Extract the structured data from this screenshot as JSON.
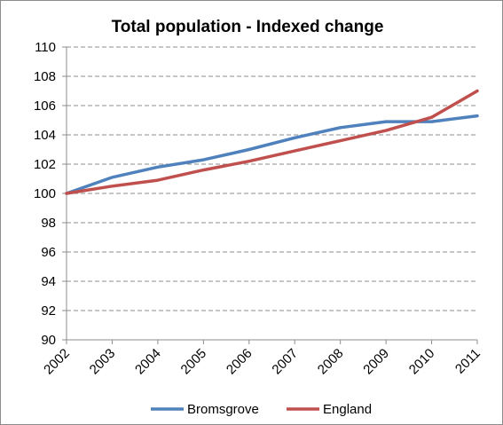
{
  "chart_data": {
    "type": "line",
    "title": "Total population - Indexed change",
    "xlabel": "",
    "ylabel": "",
    "x": [
      "2002",
      "2003",
      "2004",
      "2005",
      "2006",
      "2007",
      "2008",
      "2009",
      "2010",
      "2011"
    ],
    "yticks": [
      90,
      92,
      94,
      96,
      98,
      100,
      102,
      104,
      106,
      108,
      110
    ],
    "ylim": [
      90,
      110
    ],
    "grid": true,
    "legend_position": "bottom",
    "series": [
      {
        "name": "Bromsgrove",
        "color": "#4f81bd",
        "values": [
          100.0,
          101.1,
          101.8,
          102.3,
          103.0,
          103.8,
          104.5,
          104.9,
          104.9,
          105.3
        ]
      },
      {
        "name": "England",
        "color": "#c0504d",
        "values": [
          100.0,
          100.5,
          100.9,
          101.6,
          102.2,
          102.9,
          103.6,
          104.3,
          105.2,
          107.0
        ]
      }
    ]
  }
}
